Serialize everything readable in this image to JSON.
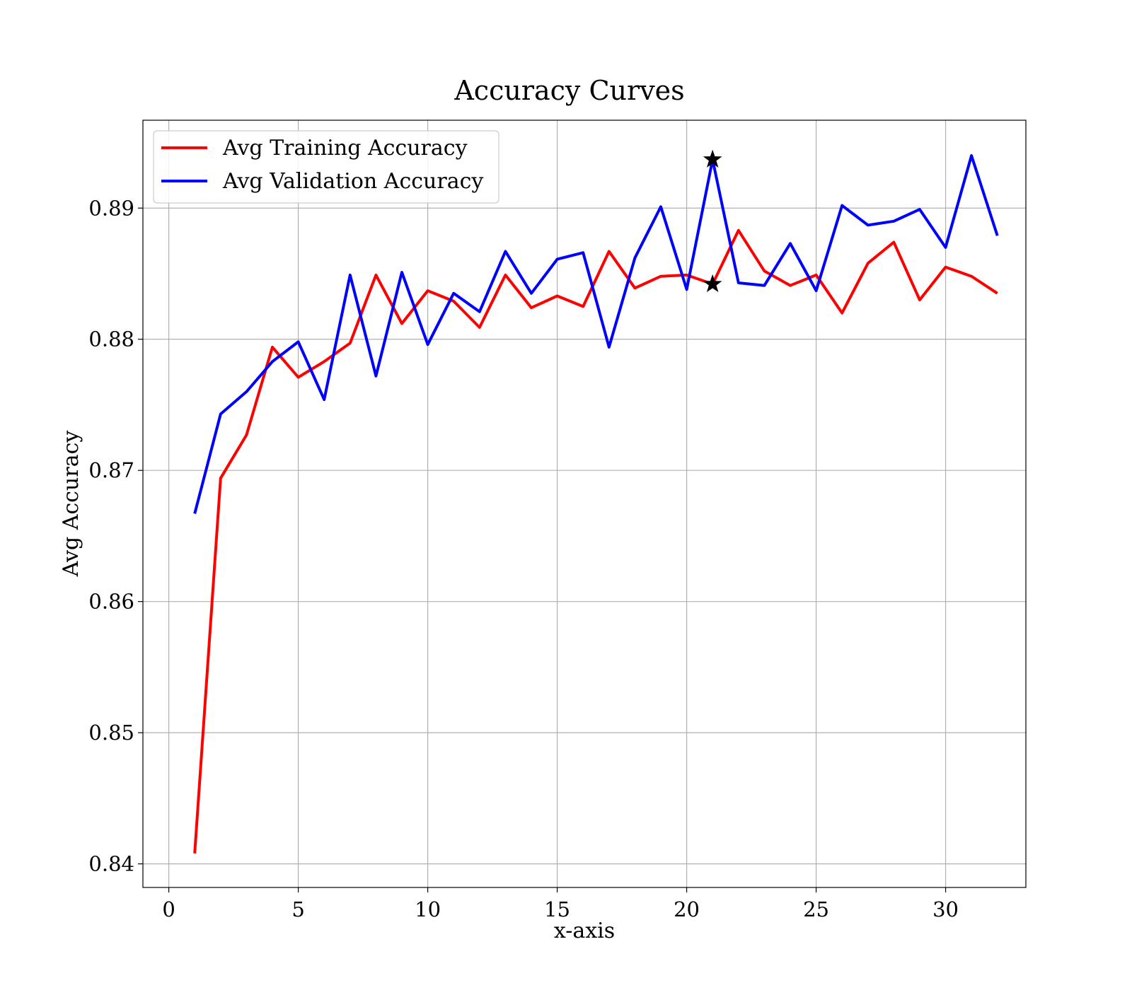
{
  "chart_data": {
    "type": "line",
    "title": "Accuracy Curves",
    "xlabel": "x-axis",
    "ylabel": "Avg Accuracy",
    "xlim": [
      -1,
      33.1
    ],
    "ylim": [
      0.8382,
      0.8967
    ],
    "xticks": [
      0,
      5,
      10,
      15,
      20,
      25,
      30
    ],
    "yticks": [
      0.84,
      0.85,
      0.86,
      0.87,
      0.88,
      0.89
    ],
    "grid": true,
    "legend_position": "upper-left",
    "x": [
      1,
      2,
      3,
      4,
      5,
      6,
      7,
      8,
      9,
      10,
      11,
      12,
      13,
      14,
      15,
      16,
      17,
      18,
      19,
      20,
      21,
      22,
      23,
      24,
      25,
      26,
      27,
      28,
      29,
      30,
      31,
      32
    ],
    "series": [
      {
        "name": "Avg Training Accuracy",
        "color": "#ff0000",
        "values": [
          0.8408,
          0.8694,
          0.8727,
          0.8794,
          0.8771,
          0.8783,
          0.8797,
          0.8849,
          0.8812,
          0.8837,
          0.8829,
          0.8809,
          0.8849,
          0.8824,
          0.8833,
          0.8825,
          0.8867,
          0.8839,
          0.8848,
          0.8849,
          0.8842,
          0.8883,
          0.8852,
          0.8841,
          0.8849,
          0.882,
          0.8858,
          0.8874,
          0.883,
          0.8855,
          0.8848,
          0.8835
        ]
      },
      {
        "name": "Avg Validation Accuracy",
        "color": "#0000ff",
        "values": [
          0.8667,
          0.8743,
          0.876,
          0.8783,
          0.8798,
          0.8754,
          0.8849,
          0.8772,
          0.8851,
          0.8796,
          0.8835,
          0.8821,
          0.8867,
          0.8835,
          0.8861,
          0.8866,
          0.8794,
          0.8862,
          0.8901,
          0.8838,
          0.8937,
          0.8843,
          0.8841,
          0.8873,
          0.8837,
          0.8902,
          0.8887,
          0.889,
          0.8899,
          0.887,
          0.894,
          0.8879
        ]
      }
    ],
    "markers": [
      {
        "symbol": "star",
        "x": 21,
        "y": 0.8937,
        "color": "#000000"
      },
      {
        "symbol": "star",
        "x": 21,
        "y": 0.8842,
        "color": "#000000"
      }
    ]
  }
}
